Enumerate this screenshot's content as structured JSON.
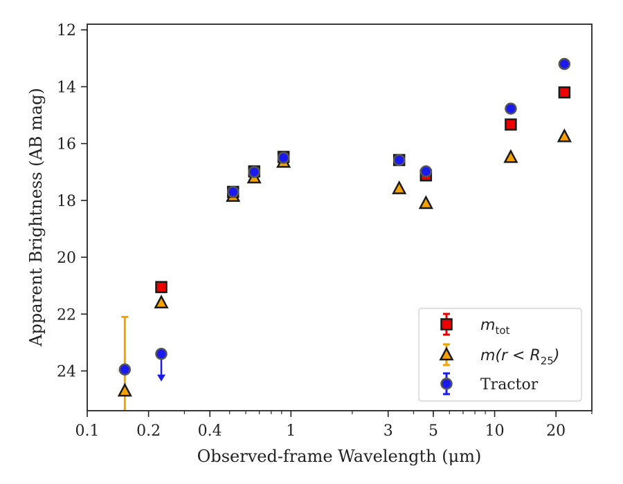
{
  "chart_data": {
    "type": "scatter",
    "xlabel": "Observed-frame Wavelength (μm)",
    "ylabel": "Apparent Brightness (AB mag)",
    "x_scale": "log",
    "xlim": [
      0.1,
      30
    ],
    "ylim": [
      25.4,
      11.8
    ],
    "y_inverted": true,
    "x_ticks": [
      {
        "value": 0.1,
        "label": "0.1"
      },
      {
        "value": 0.2,
        "label": "0.2"
      },
      {
        "value": 0.4,
        "label": "0.4"
      },
      {
        "value": 1,
        "label": "1"
      },
      {
        "value": 3,
        "label": "3"
      },
      {
        "value": 5,
        "label": "5"
      },
      {
        "value": 10,
        "label": "10"
      },
      {
        "value": 20,
        "label": "20"
      }
    ],
    "y_ticks": [
      {
        "value": 12,
        "label": "12"
      },
      {
        "value": 14,
        "label": "14"
      },
      {
        "value": 16,
        "label": "16"
      },
      {
        "value": 18,
        "label": "18"
      },
      {
        "value": 20,
        "label": "20"
      },
      {
        "value": 22,
        "label": "22"
      },
      {
        "value": 24,
        "label": "24"
      }
    ],
    "grid": false,
    "legend_position": "lower-right",
    "series": [
      {
        "key": "mtot",
        "name": "m_tot",
        "legend_main": "m",
        "legend_sub": "tot",
        "marker": "square",
        "color": "#ee0000",
        "points": [
          {
            "x": 0.231,
            "y": 21.05
          },
          {
            "x": 0.52,
            "y": 17.7
          },
          {
            "x": 0.66,
            "y": 16.98
          },
          {
            "x": 0.92,
            "y": 16.47
          },
          {
            "x": 3.4,
            "y": 16.58
          },
          {
            "x": 4.6,
            "y": 17.12
          },
          {
            "x": 12.0,
            "y": 15.33
          },
          {
            "x": 22.0,
            "y": 14.2
          }
        ]
      },
      {
        "key": "mr25",
        "name": "m(r < R_25)",
        "legend_main": "m(r < R",
        "legend_sub": "25",
        "legend_tail": ")",
        "marker": "triangle",
        "color": "#f5a100",
        "points": [
          {
            "x": 0.153,
            "y": 24.7,
            "yerr_lower": 2.6,
            "yerr_upper": 2.6
          },
          {
            "x": 0.231,
            "y": 21.6
          },
          {
            "x": 0.52,
            "y": 17.85
          },
          {
            "x": 0.66,
            "y": 17.2
          },
          {
            "x": 0.92,
            "y": 16.65
          },
          {
            "x": 3.4,
            "y": 17.58
          },
          {
            "x": 4.6,
            "y": 18.1
          },
          {
            "x": 12.0,
            "y": 16.48
          },
          {
            "x": 22.0,
            "y": 15.75
          }
        ]
      },
      {
        "key": "tractor",
        "name": "Tractor",
        "legend_main": "Tractor",
        "marker": "circle",
        "color": "#1a1aee",
        "points": [
          {
            "x": 0.153,
            "y": 23.95
          },
          {
            "x": 0.231,
            "y": 23.4,
            "upper_limit_to": 24.3
          },
          {
            "x": 0.52,
            "y": 17.7
          },
          {
            "x": 0.66,
            "y": 17.0
          },
          {
            "x": 0.92,
            "y": 16.5
          },
          {
            "x": 3.4,
            "y": 16.58
          },
          {
            "x": 4.6,
            "y": 16.98
          },
          {
            "x": 12.0,
            "y": 14.77
          },
          {
            "x": 22.0,
            "y": 13.2
          }
        ]
      }
    ]
  }
}
